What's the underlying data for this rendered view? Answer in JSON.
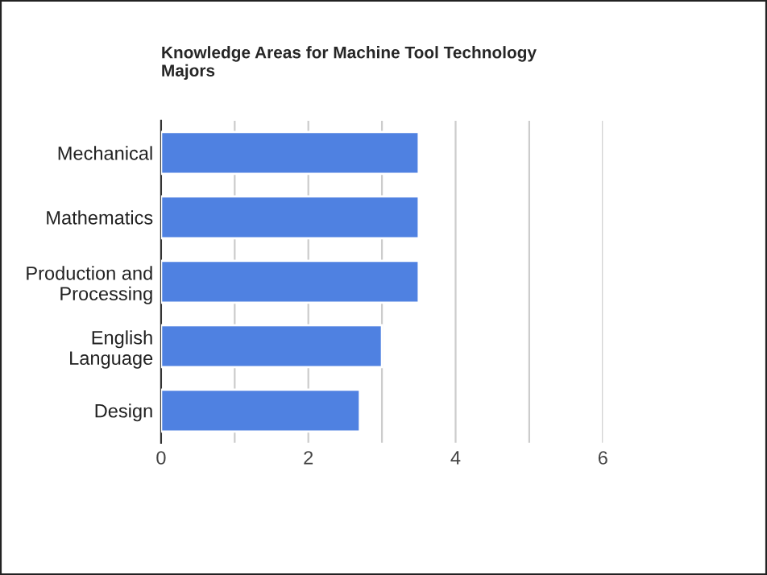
{
  "chart_data": {
    "type": "bar",
    "orientation": "horizontal",
    "title": "Knowledge Areas for Machine Tool Technology\nMajors",
    "categories": [
      "Mechanical",
      "Mathematics",
      "Production and\nProcessing",
      "English\nLanguage",
      "Design"
    ],
    "values": [
      3.5,
      3.5,
      3.5,
      3.0,
      2.7
    ],
    "color": "#4f81e1",
    "xlim": [
      0,
      6
    ],
    "xticks": [
      0,
      {
        "value": 1,
        "label": null
      },
      2,
      {
        "value": 3,
        "label": null
      },
      4,
      {
        "value": 5,
        "label": null
      },
      6
    ],
    "grid": "x",
    "legend": false
  }
}
